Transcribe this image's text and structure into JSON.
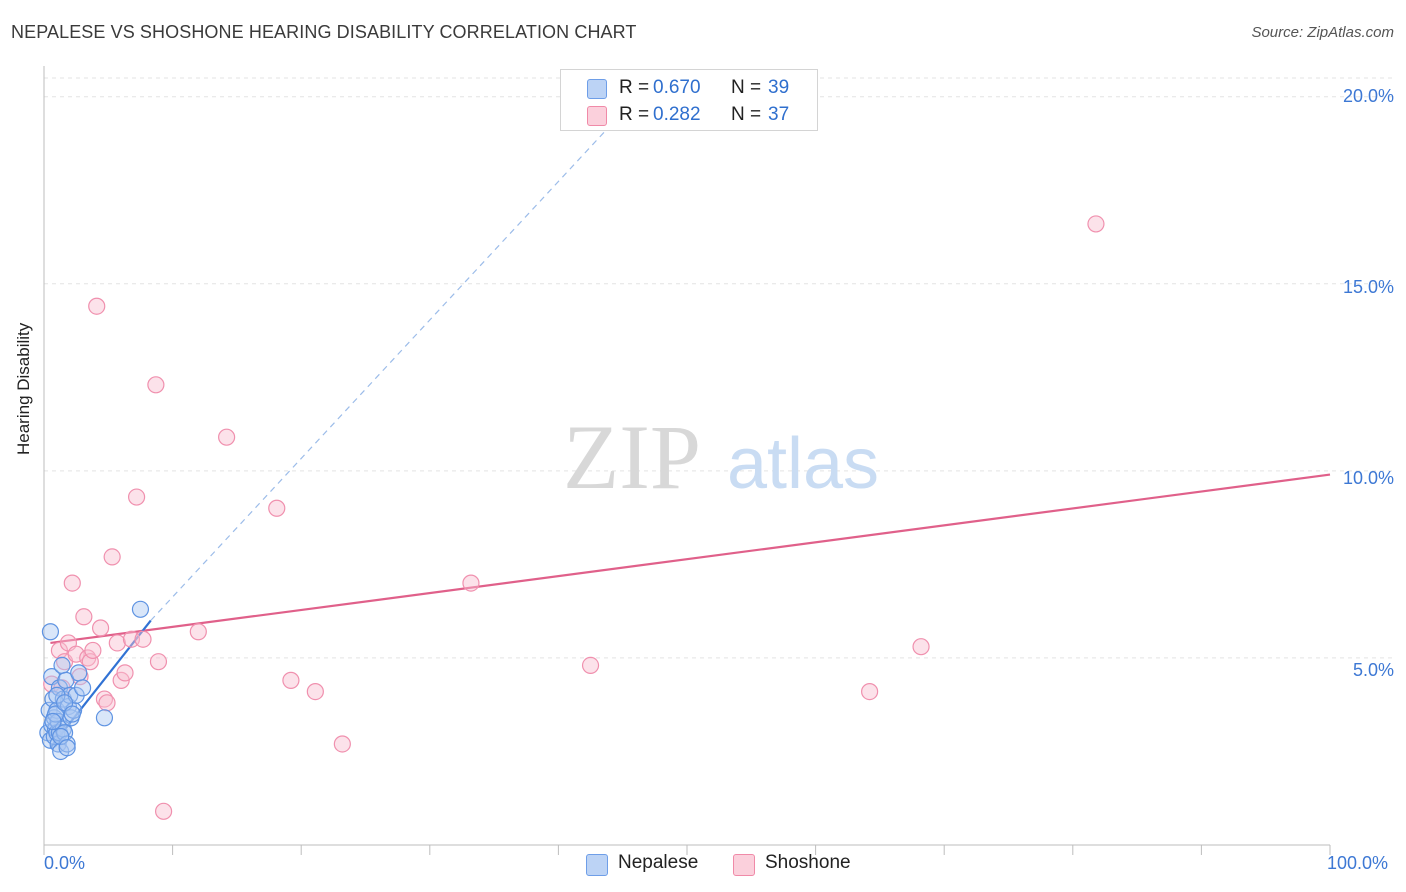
{
  "title": "NEPALESE VS SHOSHONE HEARING DISABILITY CORRELATION CHART",
  "source": "Source: ZipAtlas.com",
  "watermark": {
    "zip": "ZIP",
    "atlas": "atlas"
  },
  "legend_top": [
    {
      "r_label": "R =",
      "r_value": "0.670",
      "n_label": "N =",
      "n_value": "39"
    },
    {
      "r_label": "R =",
      "r_value": "0.282",
      "n_label": "N =",
      "n_value": "37"
    }
  ],
  "legend_bottom": [
    "Nepalese",
    "Shoshone"
  ],
  "colors": {
    "nepalese": "#6e9ee8",
    "nepalese_line": "#3172d4",
    "shoshone": "#f08aa8",
    "shoshone_line": "#e0608a",
    "tick_text": "#3d78d4"
  },
  "chart_data": {
    "type": "scatter",
    "title": "NEPALESE VS SHOSHONE HEARING DISABILITY CORRELATION CHART",
    "xlabel": "",
    "ylabel": "Hearing Disability",
    "xlim": [
      0,
      100
    ],
    "ylim": [
      0,
      20.5
    ],
    "x_tick_labels": [
      "0.0%",
      "100.0%"
    ],
    "y_ticks": [
      5,
      10,
      15,
      20
    ],
    "y_tick_labels": [
      "5.0%",
      "10.0%",
      "15.0%",
      "20.0%"
    ],
    "grid": true,
    "legend_position": "top-center",
    "series": [
      {
        "name": "Nepalese",
        "points": [
          [
            0.3,
            3.0
          ],
          [
            0.4,
            3.6
          ],
          [
            0.5,
            2.8
          ],
          [
            0.6,
            4.5
          ],
          [
            0.6,
            3.2
          ],
          [
            0.7,
            3.9
          ],
          [
            0.8,
            2.9
          ],
          [
            0.8,
            3.4
          ],
          [
            0.9,
            3.1
          ],
          [
            1.0,
            3.0
          ],
          [
            1.0,
            3.6
          ],
          [
            1.1,
            2.7
          ],
          [
            1.1,
            3.3
          ],
          [
            1.2,
            4.2
          ],
          [
            1.2,
            3.0
          ],
          [
            1.3,
            2.5
          ],
          [
            1.4,
            4.8
          ],
          [
            1.5,
            3.9
          ],
          [
            1.5,
            3.1
          ],
          [
            1.6,
            3.0
          ],
          [
            1.7,
            4.4
          ],
          [
            1.8,
            2.7
          ],
          [
            1.9,
            3.7
          ],
          [
            2.0,
            4.0
          ],
          [
            2.1,
            3.4
          ],
          [
            2.3,
            3.6
          ],
          [
            2.5,
            4.0
          ],
          [
            2.7,
            4.6
          ],
          [
            3.0,
            4.2
          ],
          [
            4.7,
            3.4
          ],
          [
            7.5,
            6.3
          ],
          [
            0.5,
            5.7
          ],
          [
            0.9,
            3.5
          ],
          [
            1.3,
            2.9
          ],
          [
            1.0,
            4.0
          ],
          [
            1.6,
            3.8
          ],
          [
            0.7,
            3.3
          ],
          [
            1.8,
            2.6
          ],
          [
            2.2,
            3.5
          ]
        ],
        "trend": {
          "x": [
            0.5,
            8.3
          ],
          "y": [
            2.6,
            6.0
          ]
        },
        "trend_extension": {
          "x": [
            8.3,
            44.5
          ],
          "y": [
            6.0,
            19.4
          ]
        }
      },
      {
        "name": "Shoshone",
        "points": [
          [
            0.6,
            4.3
          ],
          [
            1.2,
            5.2
          ],
          [
            1.6,
            4.9
          ],
          [
            1.9,
            5.4
          ],
          [
            2.2,
            7.0
          ],
          [
            2.5,
            5.1
          ],
          [
            3.1,
            6.1
          ],
          [
            3.4,
            5.0
          ],
          [
            3.6,
            4.9
          ],
          [
            3.8,
            5.2
          ],
          [
            4.1,
            14.4
          ],
          [
            4.4,
            5.8
          ],
          [
            4.7,
            3.9
          ],
          [
            4.9,
            3.8
          ],
          [
            5.3,
            7.7
          ],
          [
            5.7,
            5.4
          ],
          [
            6.0,
            4.4
          ],
          [
            6.3,
            4.6
          ],
          [
            6.8,
            5.5
          ],
          [
            7.2,
            9.3
          ],
          [
            7.7,
            5.5
          ],
          [
            8.7,
            12.3
          ],
          [
            8.9,
            4.9
          ],
          [
            9.3,
            0.9
          ],
          [
            12.0,
            5.7
          ],
          [
            14.2,
            10.9
          ],
          [
            18.1,
            9.0
          ],
          [
            19.2,
            4.4
          ],
          [
            21.1,
            4.1
          ],
          [
            23.2,
            2.7
          ],
          [
            33.2,
            7.0
          ],
          [
            42.5,
            4.8
          ],
          [
            64.2,
            4.1
          ],
          [
            68.2,
            5.3
          ],
          [
            81.8,
            16.6
          ],
          [
            2.8,
            4.5
          ],
          [
            1.4,
            4.2
          ]
        ],
        "trend": {
          "x": [
            0.5,
            100
          ],
          "y": [
            5.4,
            9.9
          ]
        }
      }
    ]
  }
}
